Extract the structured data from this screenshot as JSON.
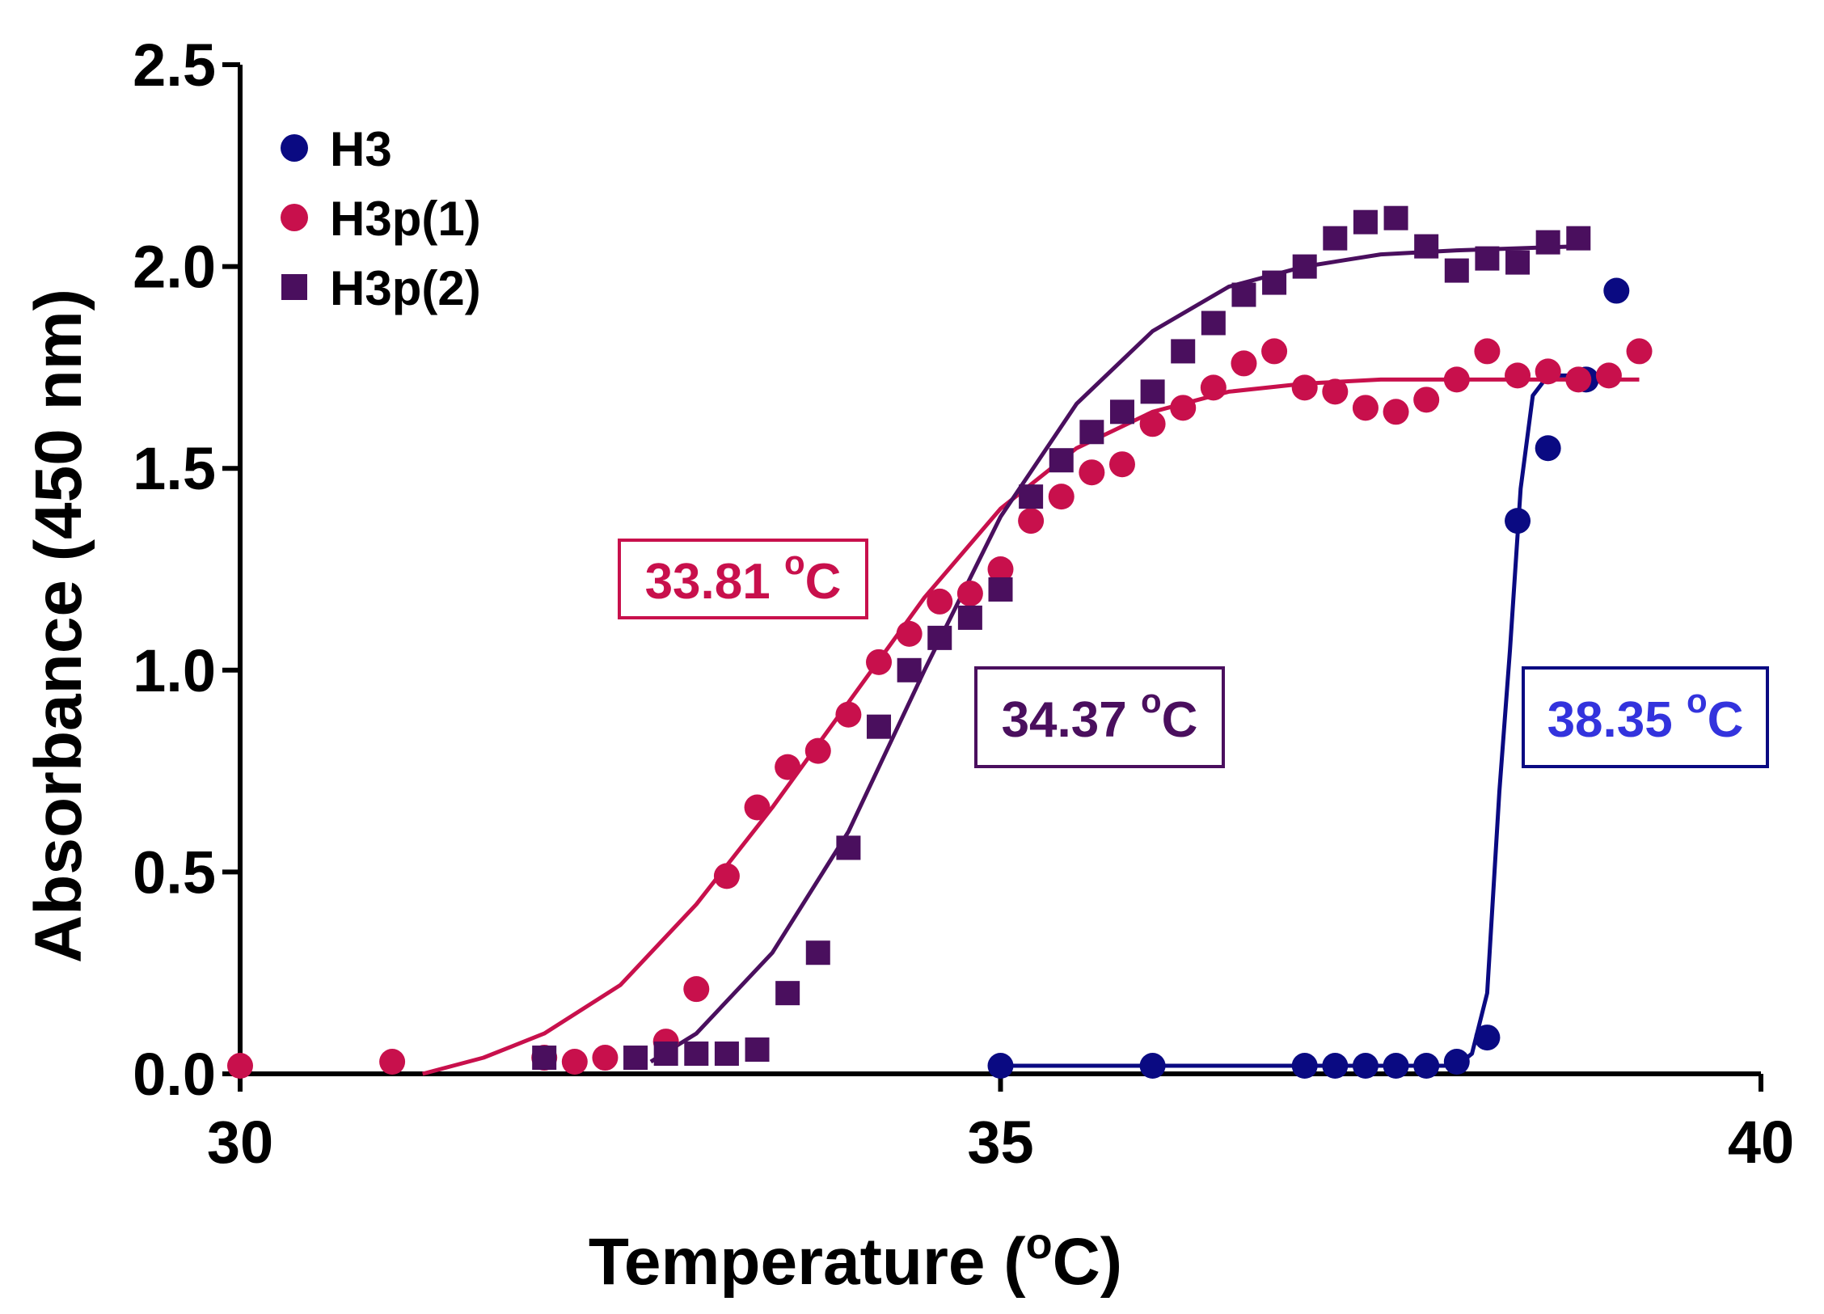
{
  "chart_data": {
    "type": "scatter",
    "xlabel_main": "Temperature (",
    "xlabel_sup": "o",
    "xlabel_end": "C)",
    "ylabel": "Absorbance (450 nm)",
    "xlim": [
      30,
      40
    ],
    "ylim": [
      0,
      2.5
    ],
    "xticks": [
      30,
      35,
      40
    ],
    "xtick_labels": [
      "30",
      "35",
      "40"
    ],
    "yticks": [
      0,
      0.5,
      1.0,
      1.5,
      2.0,
      2.5
    ],
    "ytick_labels": [
      "0.0",
      "0.5",
      "1.0",
      "1.5",
      "2.0",
      "2.5"
    ],
    "legend_position": "top-left",
    "series": [
      {
        "name": "H3",
        "color": "#0a0a82",
        "marker": "circle",
        "points": [
          [
            35.0,
            0.02
          ],
          [
            36.0,
            0.02
          ],
          [
            37.0,
            0.02
          ],
          [
            37.2,
            0.02
          ],
          [
            37.4,
            0.02
          ],
          [
            37.6,
            0.02
          ],
          [
            37.8,
            0.02
          ],
          [
            38.0,
            0.03
          ],
          [
            38.2,
            0.09
          ],
          [
            38.4,
            1.37
          ],
          [
            38.6,
            1.55
          ],
          [
            38.85,
            1.72
          ],
          [
            39.05,
            1.94
          ]
        ],
        "fit": [
          [
            35.0,
            0.02
          ],
          [
            38.0,
            0.02
          ],
          [
            38.1,
            0.05
          ],
          [
            38.2,
            0.2
          ],
          [
            38.28,
            0.7
          ],
          [
            38.35,
            1.05
          ],
          [
            38.42,
            1.45
          ],
          [
            38.5,
            1.68
          ],
          [
            38.6,
            1.73
          ],
          [
            38.85,
            1.73
          ]
        ],
        "annotation": {
          "value": "38.35",
          "unit_sup": "o",
          "unit": "C",
          "text_color": "#3333dd"
        }
      },
      {
        "name": "H3p(1)",
        "color": "#c8104c",
        "marker": "circle",
        "points": [
          [
            30.0,
            0.02
          ],
          [
            31.0,
            0.03
          ],
          [
            32.0,
            0.04
          ],
          [
            32.2,
            0.03
          ],
          [
            32.4,
            0.04
          ],
          [
            32.8,
            0.08
          ],
          [
            33.0,
            0.21
          ],
          [
            33.2,
            0.49
          ],
          [
            33.4,
            0.66
          ],
          [
            33.6,
            0.76
          ],
          [
            33.8,
            0.8
          ],
          [
            34.0,
            0.89
          ],
          [
            34.2,
            1.02
          ],
          [
            34.4,
            1.09
          ],
          [
            34.6,
            1.17
          ],
          [
            34.8,
            1.19
          ],
          [
            35.0,
            1.25
          ],
          [
            35.2,
            1.37
          ],
          [
            35.4,
            1.43
          ],
          [
            35.6,
            1.49
          ],
          [
            35.8,
            1.51
          ],
          [
            36.0,
            1.61
          ],
          [
            36.2,
            1.65
          ],
          [
            36.4,
            1.7
          ],
          [
            36.6,
            1.76
          ],
          [
            36.8,
            1.79
          ],
          [
            37.0,
            1.7
          ],
          [
            37.2,
            1.69
          ],
          [
            37.4,
            1.65
          ],
          [
            37.6,
            1.64
          ],
          [
            37.8,
            1.67
          ],
          [
            38.0,
            1.72
          ],
          [
            38.2,
            1.79
          ],
          [
            38.4,
            1.73
          ],
          [
            38.6,
            1.74
          ],
          [
            38.8,
            1.72
          ],
          [
            39.0,
            1.73
          ],
          [
            39.2,
            1.79
          ]
        ],
        "fit": [
          [
            31.2,
            0.0
          ],
          [
            31.6,
            0.04
          ],
          [
            32.0,
            0.1
          ],
          [
            32.5,
            0.22
          ],
          [
            33.0,
            0.42
          ],
          [
            33.5,
            0.66
          ],
          [
            34.0,
            0.92
          ],
          [
            34.5,
            1.18
          ],
          [
            35.0,
            1.4
          ],
          [
            35.5,
            1.55
          ],
          [
            36.0,
            1.64
          ],
          [
            36.5,
            1.69
          ],
          [
            37.0,
            1.71
          ],
          [
            37.5,
            1.72
          ],
          [
            38.0,
            1.72
          ],
          [
            39.2,
            1.72
          ]
        ],
        "annotation": {
          "value": "33.81",
          "unit_sup": "o",
          "unit": "C",
          "text_color": "#c8104c"
        }
      },
      {
        "name": "H3p(2)",
        "color": "#4a0f5e",
        "marker": "square",
        "points": [
          [
            32.0,
            0.04
          ],
          [
            32.6,
            0.04
          ],
          [
            32.8,
            0.05
          ],
          [
            33.0,
            0.05
          ],
          [
            33.2,
            0.05
          ],
          [
            33.4,
            0.06
          ],
          [
            33.6,
            0.2
          ],
          [
            33.8,
            0.3
          ],
          [
            34.0,
            0.56
          ],
          [
            34.2,
            0.86
          ],
          [
            34.4,
            1.0
          ],
          [
            34.6,
            1.08
          ],
          [
            34.8,
            1.13
          ],
          [
            35.0,
            1.2
          ],
          [
            35.2,
            1.43
          ],
          [
            35.4,
            1.52
          ],
          [
            35.6,
            1.59
          ],
          [
            35.8,
            1.64
          ],
          [
            36.0,
            1.69
          ],
          [
            36.2,
            1.79
          ],
          [
            36.4,
            1.86
          ],
          [
            36.6,
            1.93
          ],
          [
            36.8,
            1.96
          ],
          [
            37.0,
            2.0
          ],
          [
            37.2,
            2.07
          ],
          [
            37.4,
            2.11
          ],
          [
            37.6,
            2.12
          ],
          [
            37.8,
            2.05
          ],
          [
            38.0,
            1.99
          ],
          [
            38.2,
            2.02
          ],
          [
            38.4,
            2.01
          ],
          [
            38.6,
            2.06
          ],
          [
            38.8,
            2.07
          ]
        ],
        "fit": [
          [
            32.7,
            0.03
          ],
          [
            33.0,
            0.1
          ],
          [
            33.5,
            0.3
          ],
          [
            34.0,
            0.6
          ],
          [
            34.5,
            1.0
          ],
          [
            35.0,
            1.38
          ],
          [
            35.5,
            1.66
          ],
          [
            36.0,
            1.84
          ],
          [
            36.5,
            1.95
          ],
          [
            37.0,
            2.0
          ],
          [
            37.5,
            2.03
          ],
          [
            38.0,
            2.04
          ],
          [
            38.8,
            2.05
          ]
        ],
        "annotation": {
          "value": "34.37",
          "unit_sup": "o",
          "unit": "C",
          "text_color": "#4a0f5e"
        }
      }
    ]
  }
}
